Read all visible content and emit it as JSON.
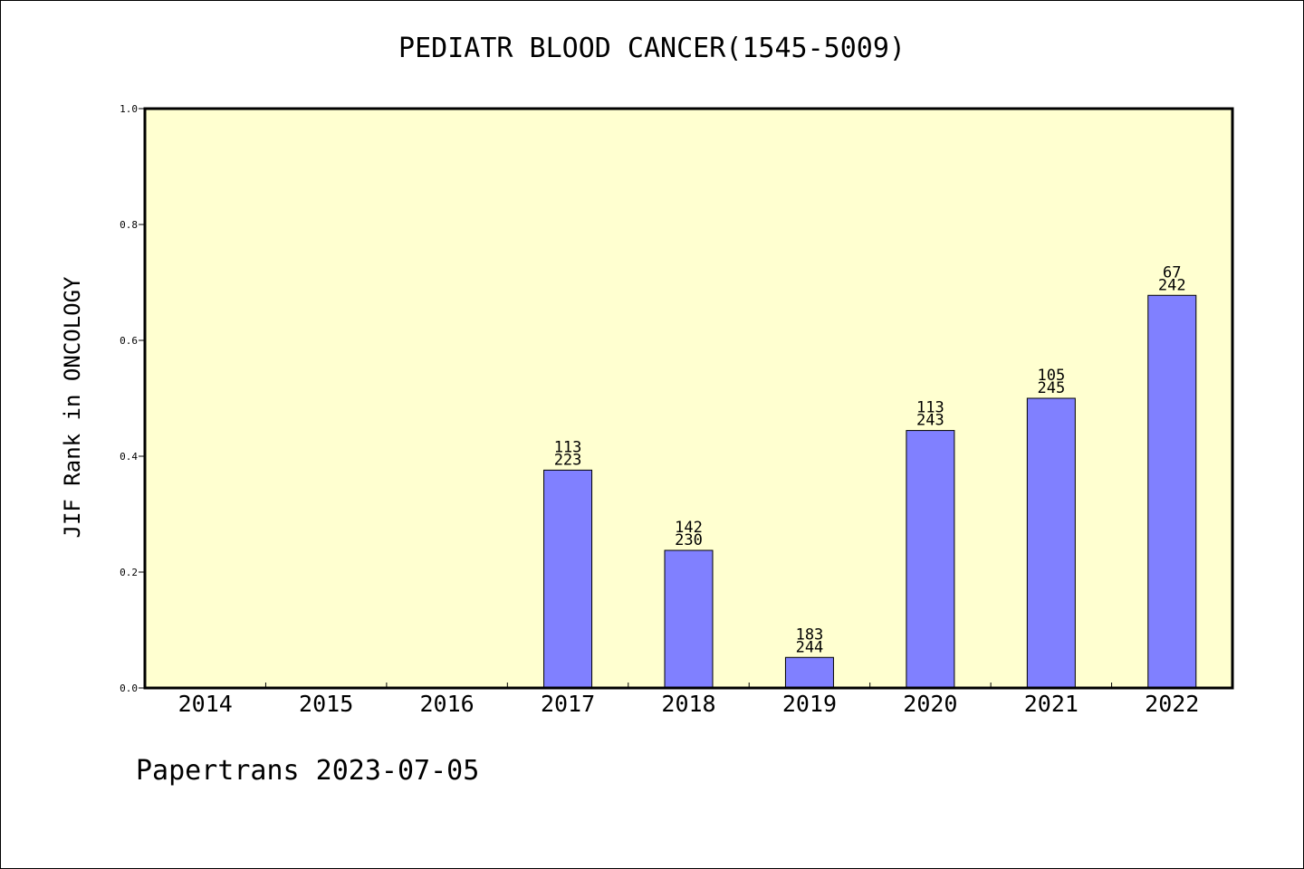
{
  "title": "PEDIATR BLOOD CANCER(1545-5009)",
  "footer": "Papertrans 2023-07-05",
  "chart_data": {
    "type": "bar",
    "title": "PEDIATR BLOOD CANCER(1545-5009)",
    "xlabel": "",
    "ylabel": "JIF Rank in ONCOLOGY",
    "ylim": [
      0,
      1.0
    ],
    "yticks": [
      "0.0",
      "0.2",
      "0.4",
      "0.6",
      "0.8",
      "1.0"
    ],
    "categories": [
      "2014",
      "2015",
      "2016",
      "2017",
      "2018",
      "2019",
      "2020",
      "2021",
      "2022"
    ],
    "values": [
      null,
      null,
      null,
      0.376,
      0.2375,
      0.0527,
      0.4444,
      0.5,
      0.6777
    ],
    "labels": [
      null,
      null,
      null,
      {
        "rank": "113",
        "total": "223"
      },
      {
        "rank": "142",
        "total": "230"
      },
      {
        "rank": "183",
        "total": "244"
      },
      {
        "rank": "113",
        "total": "243"
      },
      {
        "rank": "105",
        "total": "245"
      },
      {
        "rank": "67",
        "total": "242"
      }
    ],
    "grid": false,
    "legend": "none",
    "colors": {
      "plot_background": "#ffffd0",
      "bar": "#8080ff",
      "bar_edge": "#000000"
    }
  }
}
